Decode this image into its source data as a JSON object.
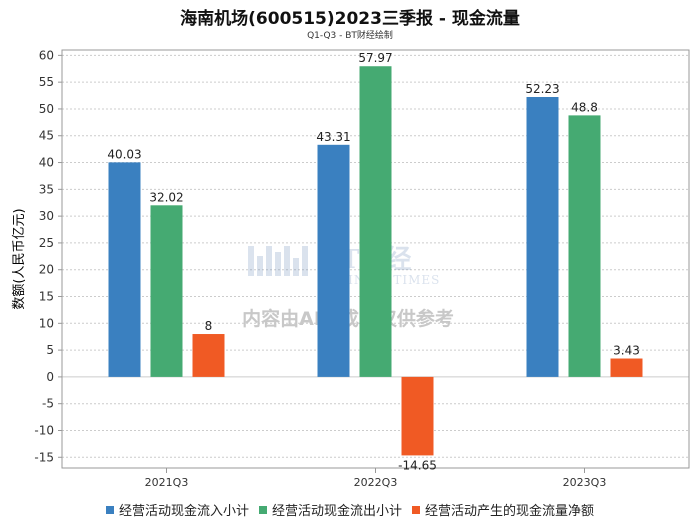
{
  "chart_data": {
    "type": "bar",
    "title": "海南机场(600515)2023三季报 - 现金流量",
    "subtitle": "Q1-Q3 - BT财经绘制",
    "ylabel": "数额(人民币亿元)",
    "xlabel": "",
    "ylim": [
      -17,
      61
    ],
    "yticks": [
      60,
      55,
      50,
      45,
      40,
      35,
      30,
      25,
      20,
      15,
      10,
      5,
      0,
      -5,
      -10,
      -15
    ],
    "categories": [
      "2021Q3",
      "2022Q3",
      "2023Q3"
    ],
    "series": [
      {
        "name": "经营活动现金流入小计",
        "color": "#3a80c0",
        "values": [
          40.03,
          43.31,
          52.23
        ],
        "labels": [
          "40.03",
          "43.31",
          "52.23"
        ]
      },
      {
        "name": "经营活动现金流出小计",
        "color": "#45aa72",
        "values": [
          32.02,
          57.97,
          48.8
        ],
        "labels": [
          "32.02",
          "57.97",
          "48.8"
        ]
      },
      {
        "name": "经营活动产生的现金流量净额",
        "color": "#f05a24",
        "values": [
          8,
          -14.65,
          3.43
        ],
        "labels": [
          "8",
          "-14.65",
          "3.43"
        ]
      }
    ],
    "grid": true,
    "legend_position": "bottom"
  },
  "watermark": {
    "brand": "BT财经",
    "brand_sub": "BUSINESSTIMES",
    "notice": "内容由AI生成，仅供参考"
  }
}
